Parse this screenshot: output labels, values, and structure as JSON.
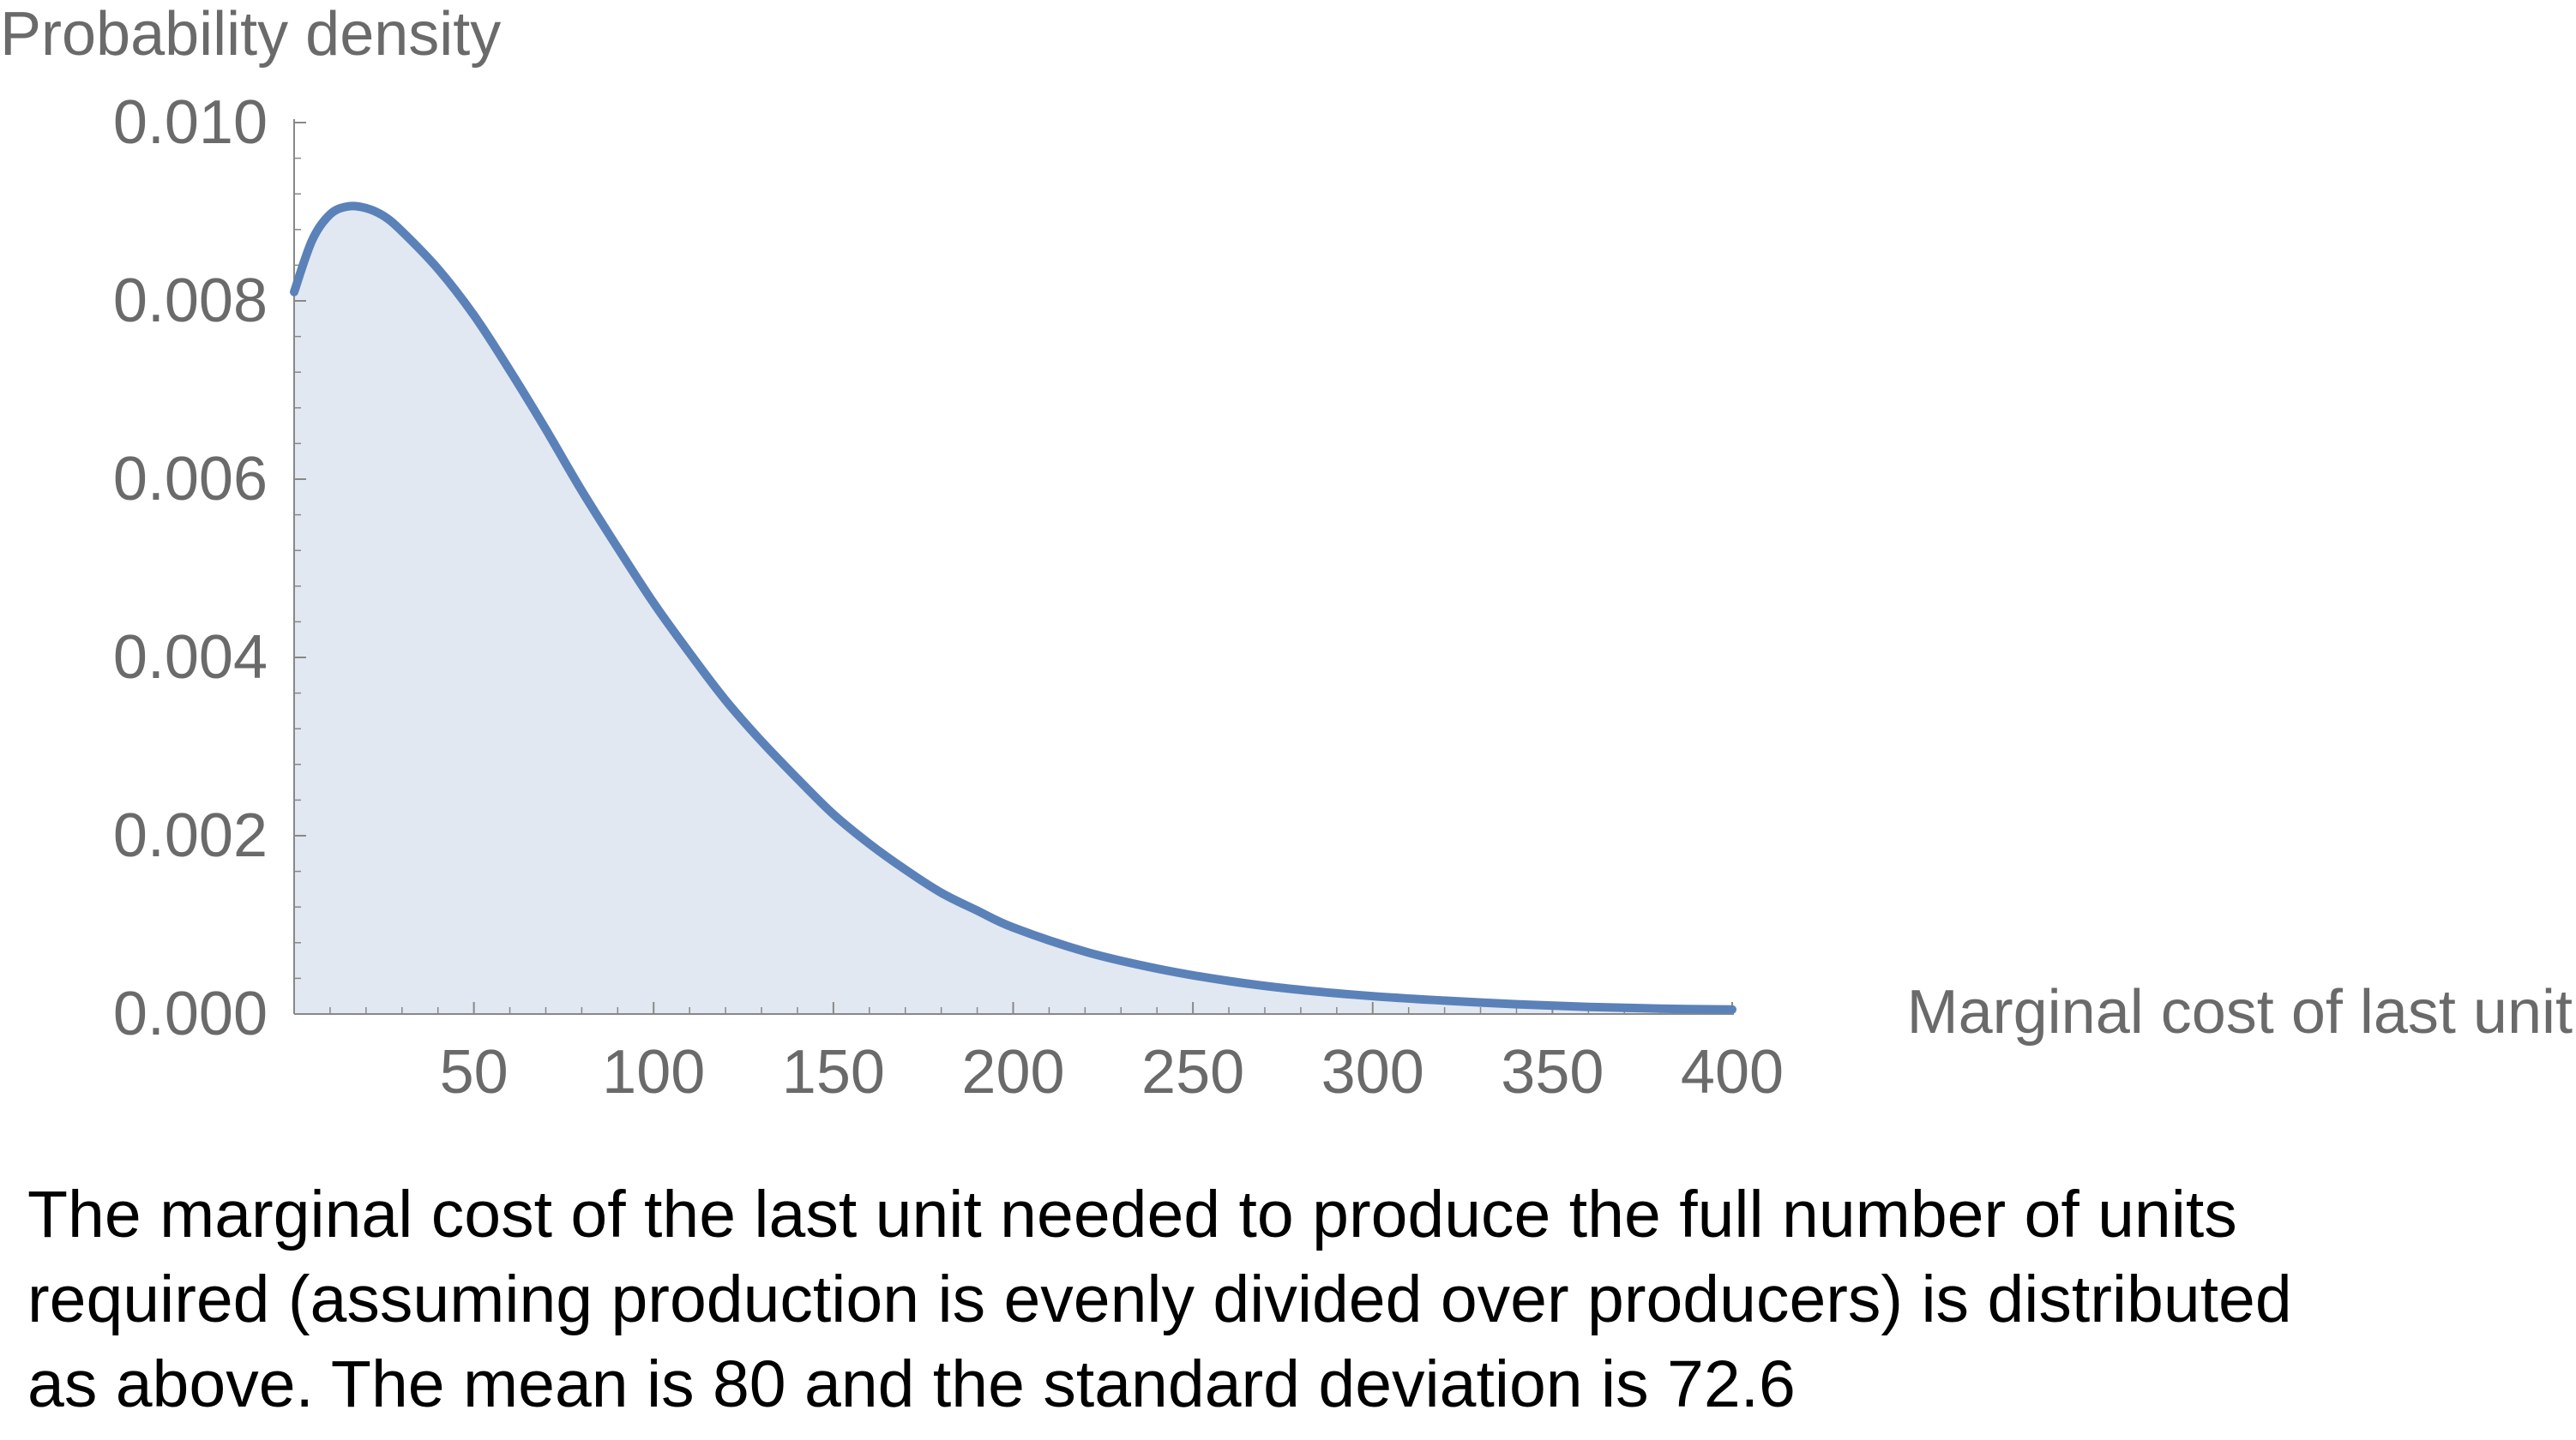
{
  "chart_data": {
    "type": "area",
    "title": "",
    "xlabel": "Marginal cost of last unit",
    "ylabel": "Probability density",
    "xlim": [
      0,
      400
    ],
    "ylim": [
      0,
      0.01
    ],
    "x_ticks": [
      50,
      100,
      150,
      200,
      250,
      300,
      350,
      400
    ],
    "x_tick_labels": [
      "50",
      "100",
      "150",
      "200",
      "250",
      "300",
      "350",
      "400"
    ],
    "y_ticks": [
      0.0,
      0.002,
      0.004,
      0.006,
      0.008,
      0.01
    ],
    "y_tick_labels": [
      "0.000",
      "0.002",
      "0.004",
      "0.006",
      "0.008",
      "0.010"
    ],
    "grid": false,
    "series": [
      {
        "x": [
          0,
          5,
          10,
          15,
          20,
          25,
          30,
          40,
          50,
          60,
          70,
          80,
          90,
          100,
          110,
          120,
          130,
          140,
          150,
          160,
          170,
          180,
          190,
          200,
          220,
          240,
          260,
          280,
          300,
          320,
          340,
          360,
          380,
          400
        ],
        "y": [
          0.0081,
          0.00868,
          0.00897,
          0.00906,
          0.00904,
          0.00895,
          0.00878,
          0.00836,
          0.00784,
          0.00722,
          0.00656,
          0.00587,
          0.00523,
          0.00461,
          0.00405,
          0.00352,
          0.00306,
          0.00264,
          0.00224,
          0.00191,
          0.00162,
          0.00136,
          0.00116,
          0.00097,
          0.0007,
          0.00051,
          0.00037,
          0.00027,
          0.0002,
          0.00015,
          0.00011,
          8e-05,
          6e-05,
          5e-05
        ]
      }
    ],
    "colors": {
      "line": "#5b81b9",
      "fill": "#e2e8f1",
      "axis": "#888888",
      "text": "#6a6a6a"
    }
  },
  "caption": {
    "line1": "The marginal cost of the last unit needed to produce the full number of units",
    "line2": "required (assuming production is evenly divided over producers) is distributed",
    "line3": "as above. The mean is 80 and the standard deviation is 72.6"
  }
}
